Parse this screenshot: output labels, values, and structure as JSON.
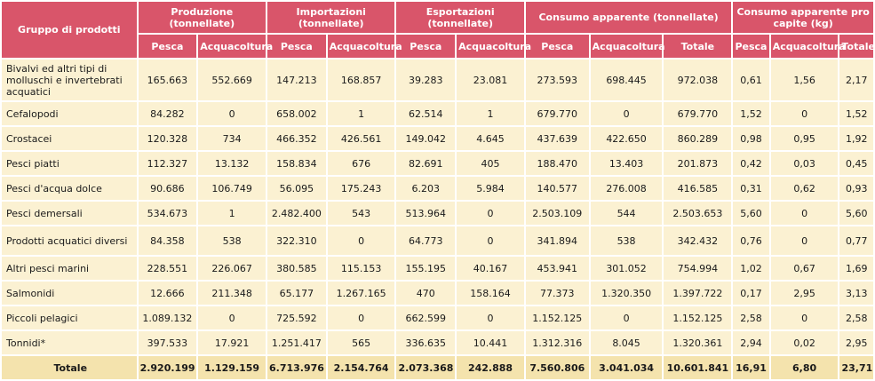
{
  "headers": {
    "group": "Gruppo di prodotti",
    "production": "Produzione (tonnellate)",
    "imports": "Importazioni (tonnellate)",
    "exports": "Esportazioni (tonnellate)",
    "apparent": "Consumo apparente (tonnellate)",
    "per_capita": "Consumo apparente pro capite (kg)",
    "sub": [
      "Pesca",
      "Acquacoltura",
      "Pesca",
      "Acquacoltura",
      "Pesca",
      "Acquacoltura",
      "Pesca",
      "Acquacoltura",
      "Totale",
      "Pesca",
      "Acquacoltura",
      "Totale"
    ]
  },
  "rows": [
    {
      "name": "Bivalvi ed altri tipi di molluschi e invertebrati acquatici",
      "values": [
        "165.663",
        "552.669",
        "147.213",
        "168.857",
        "39.283",
        "23.081",
        "273.593",
        "698.445",
        "972.038",
        "0,61",
        "1,56",
        "2,17"
      ]
    },
    {
      "name": "Cefalopodi",
      "values": [
        "84.282",
        "0",
        "658.002",
        "1",
        "62.514",
        "1",
        "679.770",
        "0",
        "679.770",
        "1,52",
        "0",
        "1,52"
      ]
    },
    {
      "name": "Crostacei",
      "values": [
        "120.328",
        "734",
        "466.352",
        "426.561",
        "149.042",
        "4.645",
        "437.639",
        "422.650",
        "860.289",
        "0,98",
        "0,95",
        "1,92"
      ]
    },
    {
      "name": "Pesci piatti",
      "values": [
        "112.327",
        "13.132",
        "158.834",
        "676",
        "82.691",
        "405",
        "188.470",
        "13.403",
        "201.873",
        "0,42",
        "0,03",
        "0,45"
      ]
    },
    {
      "name": "Pesci d'acqua dolce",
      "values": [
        "90.686",
        "106.749",
        "56.095",
        "175.243",
        "6.203",
        "5.984",
        "140.577",
        "276.008",
        "416.585",
        "0,31",
        "0,62",
        "0,93"
      ]
    },
    {
      "name": "Pesci demersali",
      "values": [
        "534.673",
        "1",
        "2.482.400",
        "543",
        "513.964",
        "0",
        "2.503.109",
        "544",
        "2.503.653",
        "5,60",
        "0",
        "5,60"
      ]
    },
    {
      "name": "Prodotti acquatici diversi",
      "values": [
        "84.358",
        "538",
        "322.310",
        "0",
        "64.773",
        "0",
        "341.894",
        "538",
        "342.432",
        "0,76",
        "0",
        "0,77"
      ]
    },
    {
      "name": "Altri pesci marini",
      "values": [
        "228.551",
        "226.067",
        "380.585",
        "115.153",
        "155.195",
        "40.167",
        "453.941",
        "301.052",
        "754.994",
        "1,02",
        "0,67",
        "1,69"
      ]
    },
    {
      "name": "Salmonidi",
      "values": [
        "12.666",
        "211.348",
        "65.177",
        "1.267.165",
        "470",
        "158.164",
        "77.373",
        "1.320.350",
        "1.397.722",
        "0,17",
        "2,95",
        "3,13"
      ]
    },
    {
      "name": "Piccoli pelagici",
      "values": [
        "1.089.132",
        "0",
        "725.592",
        "0",
        "662.599",
        "0",
        "1.152.125",
        "0",
        "1.152.125",
        "2,58",
        "0",
        "2,58"
      ]
    },
    {
      "name": "Tonnidi*",
      "values": [
        "397.533",
        "17.921",
        "1.251.417",
        "565",
        "336.635",
        "10.441",
        "1.312.316",
        "8.045",
        "1.320.361",
        "2,94",
        "0,02",
        "2,95"
      ]
    }
  ],
  "total": {
    "name": "Totale",
    "values": [
      "2.920.199",
      "1.129.159",
      "6.713.976",
      "2.154.764",
      "2.073.368",
      "242.888",
      "7.560.806",
      "3.041.034",
      "10.601.841",
      "16,91",
      "6,80",
      "23,71"
    ]
  }
}
